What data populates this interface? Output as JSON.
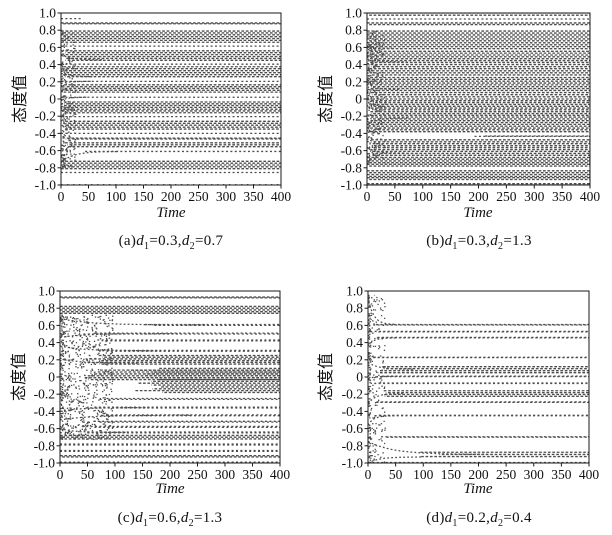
{
  "figure": {
    "background": "#ffffff",
    "dot_color": "#4d4d4d",
    "sparse_dot_color": "#5a5a5a",
    "axis_color": "#1a1a1a",
    "text_color": "#111111"
  },
  "axes": {
    "xlabel": "Time",
    "ylabel": "态度值",
    "xlim": [
      0,
      400
    ],
    "ylim": [
      -1,
      1
    ],
    "xticks": [
      0,
      50,
      100,
      150,
      200,
      250,
      300,
      350,
      400
    ],
    "ytick_values": [
      1,
      0.8,
      0.6,
      0.4,
      0.2,
      0,
      -0.2,
      -0.4,
      -0.6,
      -0.8,
      -1
    ],
    "ytick_labels": [
      "1.0",
      "0.8",
      "0.6",
      "0.4",
      "0.2",
      "0",
      "-0.2",
      "-0.4",
      "-0.6",
      "-0.8",
      "-1.0"
    ]
  },
  "chart_data": [
    {
      "id": "a",
      "type": "scatter",
      "label_prefix": "(a)",
      "param_symbol": "d",
      "d1": "0.3",
      "d2": "0.7",
      "caption_text": "(a)d1=0.3,d2=0.7",
      "seed": 11,
      "bands": [
        [
          1.0,
          1.0,
          0,
          "s"
        ],
        [
          0.935,
          0.935,
          0,
          "n",
          40
        ],
        [
          0.875,
          0.885,
          0,
          "d"
        ],
        [
          0.66,
          0.79,
          0,
          "d"
        ],
        [
          0.615,
          0.615,
          0,
          "n"
        ],
        [
          0.45,
          0.56,
          8,
          "d"
        ],
        [
          0.405,
          0.405,
          0,
          "n"
        ],
        [
          0.26,
          0.375,
          6,
          "d"
        ],
        [
          0.205,
          0.205,
          0,
          "n"
        ],
        [
          0.08,
          0.165,
          6,
          "d"
        ],
        [
          0.02,
          0.02,
          0,
          "n"
        ],
        [
          -0.16,
          -0.035,
          6,
          "d"
        ],
        [
          -0.205,
          -0.205,
          0,
          "n"
        ],
        [
          -0.35,
          -0.26,
          8,
          "d"
        ],
        [
          -0.4,
          -0.4,
          0,
          "n"
        ],
        [
          -0.465,
          -0.455,
          10,
          "d"
        ],
        [
          -0.555,
          -0.51,
          10,
          "d"
        ],
        [
          -0.61,
          -0.61,
          50,
          "n"
        ],
        [
          -0.81,
          -0.725,
          0,
          "d"
        ],
        [
          -0.855,
          -0.855,
          0,
          "n"
        ],
        [
          -0.995,
          -0.995,
          0,
          "s"
        ]
      ],
      "transients": [
        [
          -0.74,
          -0.61,
          22
        ],
        [
          0.52,
          0.455,
          16
        ],
        [
          0.33,
          0.26,
          12
        ],
        [
          0.18,
          0.205,
          12
        ],
        [
          -0.02,
          0.02,
          10
        ]
      ],
      "scatter": {
        "edge_n": 90,
        "chaos_n": 200,
        "t_max": 26,
        "y_min": -0.8,
        "y_max": 0.8
      }
    },
    {
      "id": "b",
      "type": "scatter",
      "label_prefix": "(b)",
      "param_symbol": "d",
      "d1": "0.3",
      "d2": "1.3",
      "caption_text": "(b)d1=0.3,d2=1.3",
      "seed": 22,
      "bands": [
        [
          0.975,
          1.0,
          0,
          "d"
        ],
        [
          0.93,
          0.93,
          0,
          "n"
        ],
        [
          0.865,
          0.885,
          0,
          "d"
        ],
        [
          0.585,
          0.79,
          0,
          "d"
        ],
        [
          0.425,
          0.555,
          6,
          "d"
        ],
        [
          0.28,
          0.4,
          6,
          "d"
        ],
        [
          0.1,
          0.25,
          6,
          "d"
        ],
        [
          0.0,
          0.075,
          8,
          "d"
        ],
        [
          -0.085,
          -0.02,
          10,
          "d"
        ],
        [
          -0.19,
          -0.105,
          8,
          "d"
        ],
        [
          -0.38,
          -0.21,
          8,
          "d"
        ],
        [
          -0.435,
          -0.43,
          180,
          "n"
        ],
        [
          -0.655,
          -0.475,
          10,
          "d"
        ],
        [
          -0.78,
          -0.68,
          0,
          "d"
        ],
        [
          -0.9,
          -0.835,
          0,
          "d"
        ],
        [
          -0.935,
          -0.915,
          0,
          "d"
        ],
        [
          -1.0,
          -0.985,
          0,
          "d"
        ]
      ],
      "transients": [
        [
          0.5,
          0.43,
          15
        ],
        [
          0.2,
          0.11,
          12
        ],
        [
          -0.3,
          -0.22,
          16
        ],
        [
          -0.56,
          -0.63,
          14
        ],
        [
          0.62,
          0.59,
          10
        ]
      ],
      "scatter": {
        "edge_n": 100,
        "chaos_n": 260,
        "t_max": 32,
        "y_min": -0.76,
        "y_max": 0.79
      }
    },
    {
      "id": "c",
      "type": "scatter",
      "label_prefix": "(c)",
      "param_symbol": "d",
      "d1": "0.6",
      "d2": "1.3",
      "caption_text": "(c)d1=0.6,d2=1.3",
      "seed": 33,
      "bands": [
        [
          1.0,
          1.0,
          0,
          "s"
        ],
        [
          0.92,
          0.93,
          0,
          "d"
        ],
        [
          0.74,
          0.82,
          0,
          "d"
        ],
        [
          0.6,
          0.61,
          150,
          "n"
        ],
        [
          0.5,
          0.51,
          60,
          "n"
        ],
        [
          0.42,
          0.43,
          70,
          "n"
        ],
        [
          0.3,
          0.31,
          80,
          "n"
        ],
        [
          0.15,
          0.25,
          60,
          "d"
        ],
        [
          -0.03,
          0.08,
          60,
          "d"
        ],
        [
          -0.18,
          0.1,
          150,
          "d"
        ],
        [
          -0.26,
          -0.25,
          70,
          "n"
        ],
        [
          -0.36,
          -0.35,
          60,
          "n"
        ],
        [
          -0.45,
          -0.44,
          90,
          "n"
        ],
        [
          -0.525,
          -0.515,
          60,
          "n"
        ],
        [
          -0.585,
          -0.575,
          50,
          "n"
        ],
        [
          -0.65,
          -0.64,
          40,
          "n"
        ],
        [
          -0.72,
          -0.68,
          0,
          "d"
        ],
        [
          -0.79,
          -0.78,
          0,
          "n"
        ],
        [
          -0.865,
          -0.855,
          0,
          "n"
        ],
        [
          -0.93,
          -0.915,
          0,
          "d"
        ],
        [
          -1.0,
          -0.99,
          0,
          "n"
        ]
      ],
      "transients": [
        [
          0.68,
          0.605,
          55
        ],
        [
          0.46,
          0.505,
          45
        ],
        [
          0.36,
          0.305,
          40
        ],
        [
          -0.5,
          -0.445,
          50
        ],
        [
          -0.4,
          -0.355,
          35
        ],
        [
          0.22,
          0.16,
          30
        ],
        [
          -0.6,
          -0.645,
          25
        ]
      ],
      "scatter": {
        "edge_n": 90,
        "chaos_n": 650,
        "t_max": 95,
        "y_min": -0.73,
        "y_max": 0.72
      }
    },
    {
      "id": "d",
      "type": "scatter",
      "label_prefix": "(d)",
      "param_symbol": "d",
      "d1": "0.2",
      "d2": "0.4",
      "caption_text": "(d)d1=0.2,d2=0.4",
      "seed": 44,
      "bands": [
        [
          1.0,
          1.0,
          0,
          "s"
        ],
        [
          0.95,
          0.95,
          0,
          "s",
          12
        ],
        [
          0.605,
          0.61,
          12,
          "n"
        ],
        [
          0.525,
          0.53,
          16,
          "n"
        ],
        [
          0.455,
          0.46,
          16,
          "n"
        ],
        [
          0.225,
          0.23,
          10,
          "n"
        ],
        [
          0.05,
          0.12,
          25,
          "d"
        ],
        [
          0.005,
          0.01,
          20,
          "n"
        ],
        [
          -0.075,
          -0.07,
          16,
          "n"
        ],
        [
          -0.225,
          -0.16,
          30,
          "d"
        ],
        [
          -0.295,
          -0.29,
          16,
          "n"
        ],
        [
          -0.45,
          -0.445,
          16,
          "n"
        ],
        [
          -0.7,
          -0.695,
          26,
          "n"
        ],
        [
          -0.925,
          -0.875,
          100,
          "d"
        ],
        [
          -1.0,
          -0.995,
          0,
          "n"
        ]
      ],
      "transients": [
        [
          0.92,
          0.61,
          10
        ],
        [
          0.36,
          0.455,
          10
        ],
        [
          0.17,
          0.09,
          18
        ],
        [
          -0.02,
          0.008,
          12
        ],
        [
          -0.31,
          -0.19,
          14
        ],
        [
          -0.56,
          -0.45,
          10
        ],
        [
          -0.75,
          -0.9,
          45
        ],
        [
          -1.0,
          -0.93,
          20
        ]
      ],
      "scatter": {
        "edge_n": 110,
        "chaos_n": 150,
        "t_max": 30,
        "y_min": -1.0,
        "y_max": 0.95
      }
    }
  ]
}
